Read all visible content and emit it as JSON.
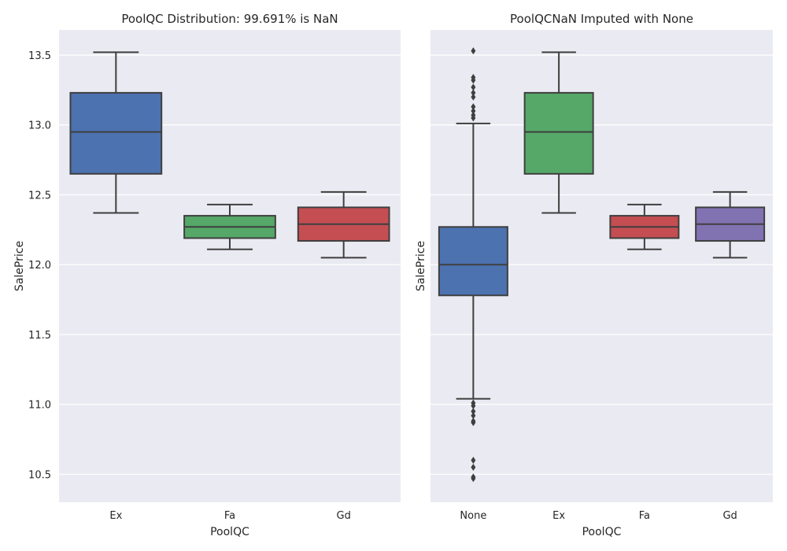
{
  "chart_data": [
    {
      "type": "box",
      "title": "PoolQC Distribution: 99.691% is NaN",
      "xlabel": "PoolQC",
      "ylabel": "SalePrice",
      "ylim": [
        10.3,
        13.68
      ],
      "yticks": [
        "10.5",
        "11.0",
        "11.5",
        "12.0",
        "12.5",
        "13.0",
        "13.5"
      ],
      "grid": true,
      "categories": [
        "Ex",
        "Fa",
        "Gd"
      ],
      "boxes": [
        {
          "category": "Ex",
          "color": "#4c72b0",
          "whislo": 12.37,
          "q1": 12.65,
          "med": 12.95,
          "q3": 13.23,
          "whishi": 13.52,
          "fliers": []
        },
        {
          "category": "Fa",
          "color": "#55a868",
          "whislo": 12.11,
          "q1": 12.19,
          "med": 12.27,
          "q3": 12.35,
          "whishi": 12.43,
          "fliers": []
        },
        {
          "category": "Gd",
          "color": "#c44e52",
          "whislo": 12.05,
          "q1": 12.17,
          "med": 12.29,
          "q3": 12.41,
          "whishi": 12.52,
          "fliers": []
        }
      ]
    },
    {
      "type": "box",
      "title": "PoolQCNaN Imputed with None",
      "xlabel": "PoolQC",
      "ylabel": "SalePrice",
      "ylim": [
        10.3,
        13.68
      ],
      "yticks": [],
      "grid": true,
      "categories": [
        "None",
        "Ex",
        "Fa",
        "Gd"
      ],
      "boxes": [
        {
          "category": "None",
          "color": "#4c72b0",
          "whislo": 11.04,
          "q1": 11.78,
          "med": 12.0,
          "q3": 12.27,
          "whishi": 13.01,
          "fliers": [
            13.53,
            13.34,
            13.32,
            13.27,
            13.23,
            13.2,
            13.13,
            13.1,
            13.07,
            13.05,
            11.01,
            10.99,
            10.95,
            10.92,
            10.88,
            10.87,
            10.6,
            10.55,
            10.48,
            10.47
          ]
        },
        {
          "category": "Ex",
          "color": "#55a868",
          "whislo": 12.37,
          "q1": 12.65,
          "med": 12.95,
          "q3": 13.23,
          "whishi": 13.52,
          "fliers": []
        },
        {
          "category": "Fa",
          "color": "#c44e52",
          "whislo": 12.11,
          "q1": 12.19,
          "med": 12.27,
          "q3": 12.35,
          "whishi": 12.43,
          "fliers": []
        },
        {
          "category": "Gd",
          "color": "#8172b2",
          "whislo": 12.05,
          "q1": 12.17,
          "med": 12.29,
          "q3": 12.41,
          "whishi": 12.52,
          "fliers": []
        }
      ]
    }
  ]
}
